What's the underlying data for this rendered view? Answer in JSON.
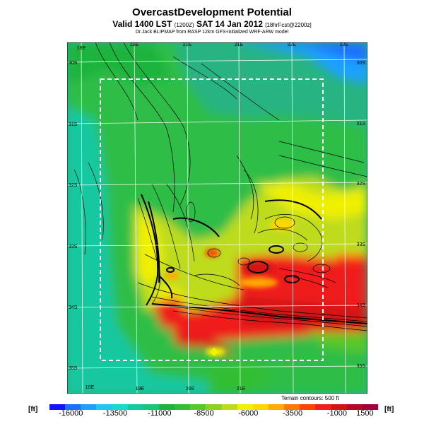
{
  "header": {
    "title": "OvercastDevelopment Potential",
    "valid_main": "Valid 1400 LST",
    "valid_small": "(1200Z)",
    "valid_date": "SAT 14 Jan 2012",
    "forecast_small": "[18hrFcst@2200z]",
    "subtitle": "Dr.Jack BLIPMAP from RASP 12km GFS-initialized WRF-ARW model"
  },
  "map": {
    "lon_top": [
      "18E",
      "19E",
      "20E",
      "21E",
      "22E",
      "23E"
    ],
    "lon_bottom": [
      "18E",
      "19E",
      "20E",
      "21E"
    ],
    "lat_left": [
      "30S",
      "31S",
      "32S",
      "33S",
      "34S",
      "35S"
    ],
    "lat_right": [
      "30S",
      "31S",
      "32S",
      "33S",
      "34S",
      "35S"
    ],
    "terrain_note": "Terrain contours: 500 ft"
  },
  "colorbar": {
    "unit": "[ft]",
    "tick_labels": [
      "-16000",
      "-13500",
      "-11000",
      "-8500",
      "-6000",
      "-3500",
      "-1000",
      "1500"
    ],
    "colors": [
      "#1414ff",
      "#1e6eff",
      "#1ea0ff",
      "#1ec8f0",
      "#14dcc8",
      "#14c8a0",
      "#14c878",
      "#1eb43c",
      "#32be32",
      "#5ac828",
      "#8cd21e",
      "#bedc1e",
      "#f0f000",
      "#ffd700",
      "#ffaa00",
      "#ff7800",
      "#ff4600",
      "#f01e1e",
      "#d21414",
      "#b40a28",
      "#a0003c"
    ]
  }
}
